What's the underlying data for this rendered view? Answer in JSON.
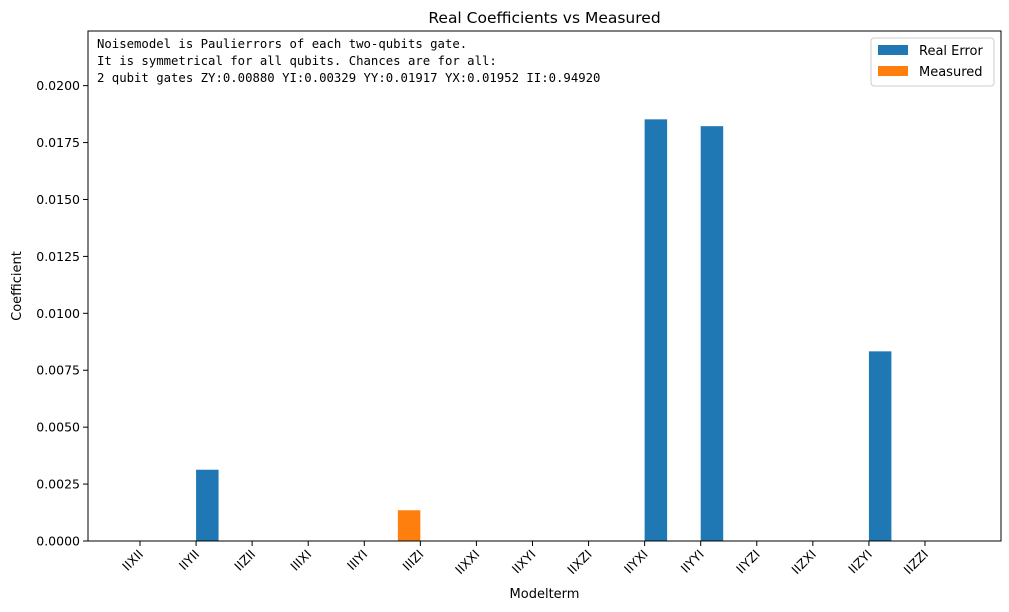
{
  "chart_data": {
    "type": "bar",
    "title": "Real Coefficients vs Measured",
    "xlabel": "Modelterm",
    "ylabel": "Coefficient",
    "ylim": [
      0,
      0.0224
    ],
    "yticks": [
      "0.0000",
      "0.0025",
      "0.0050",
      "0.0075",
      "0.0100",
      "0.0125",
      "0.0150",
      "0.0175",
      "0.0200"
    ],
    "categories": [
      "IIXII",
      "IIYII",
      "IIZII",
      "IIIXI",
      "IIIYI",
      "IIIZI",
      "IIXXI",
      "IIXYI",
      "IIXZI",
      "IIYXI",
      "IIYYI",
      "IIYZI",
      "IIZXI",
      "IIZYI",
      "IIZZI"
    ],
    "series": [
      {
        "name": "Real Error",
        "color": "#1f77b4",
        "values": [
          0,
          0.00313,
          0,
          0,
          0,
          0,
          0,
          0,
          0,
          0.01852,
          0.01822,
          0,
          0,
          0.00833,
          0
        ]
      },
      {
        "name": "Measured",
        "color": "#ff7f0e",
        "values": [
          0,
          0,
          0,
          0,
          0,
          0.00135,
          0,
          0,
          0,
          0,
          0,
          0,
          0,
          0,
          0
        ]
      }
    ],
    "annotation": [
      "Noisemodel is Paulierrors of each two-qubits gate.",
      "It is symmetrical for all qubits. Chances are for all:",
      "2 qubit gates ZY:0.00880   YI:0.00329   YY:0.01917   YX:0.01952   II:0.94920"
    ],
    "legend_position": "top-right",
    "grid": false
  }
}
